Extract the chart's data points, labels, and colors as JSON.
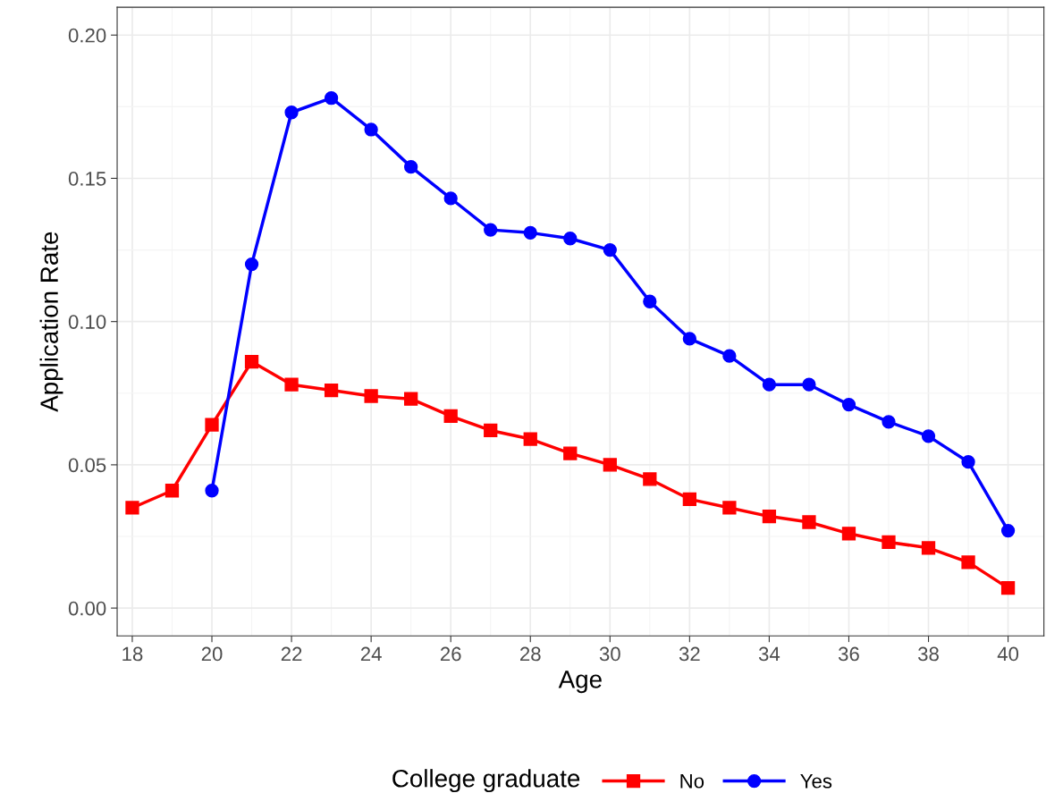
{
  "chart_data": {
    "type": "line",
    "xlabel": "Age",
    "ylabel": "Application Rate",
    "legend_title": "College graduate",
    "legend": "bottom",
    "grid": true,
    "line_style": "solid",
    "xlim": [
      17.62,
      40.9
    ],
    "xticks": [
      18,
      20,
      22,
      24,
      26,
      28,
      30,
      32,
      34,
      36,
      38,
      40
    ],
    "ylim": [
      -0.0097,
      0.2097
    ],
    "yticks": [
      {
        "value": 0,
        "label": "0.00"
      },
      {
        "value": 0.05,
        "label": "0.05"
      },
      {
        "value": 0.1,
        "label": "0.10"
      },
      {
        "value": 0.15,
        "label": "0.15"
      },
      {
        "value": 0.2,
        "label": "0.20"
      }
    ],
    "series": [
      {
        "name": "No",
        "color": "#ff0000",
        "marker": "square",
        "x": [
          18,
          19,
          20,
          21,
          22,
          23,
          24,
          25,
          26,
          27,
          28,
          29,
          30,
          31,
          32,
          33,
          34,
          35,
          36,
          37,
          38,
          39,
          40
        ],
        "values": [
          0.035,
          0.041,
          0.064,
          0.086,
          0.078,
          0.076,
          0.074,
          0.073,
          0.067,
          0.062,
          0.059,
          0.054,
          0.05,
          0.045,
          0.038,
          0.035,
          0.032,
          0.03,
          0.026,
          0.023,
          0.021,
          0.016,
          0.007
        ]
      },
      {
        "name": "Yes",
        "color": "#0000ff",
        "marker": "circle",
        "x": [
          20,
          21,
          22,
          23,
          24,
          25,
          26,
          27,
          28,
          29,
          30,
          31,
          32,
          33,
          34,
          35,
          36,
          37,
          38,
          39,
          40
        ],
        "values": [
          0.041,
          0.12,
          0.173,
          0.178,
          0.167,
          0.154,
          0.143,
          0.132,
          0.131,
          0.129,
          0.125,
          0.107,
          0.094,
          0.088,
          0.078,
          0.078,
          0.071,
          0.065,
          0.06,
          0.051,
          0.027
        ]
      }
    ]
  }
}
